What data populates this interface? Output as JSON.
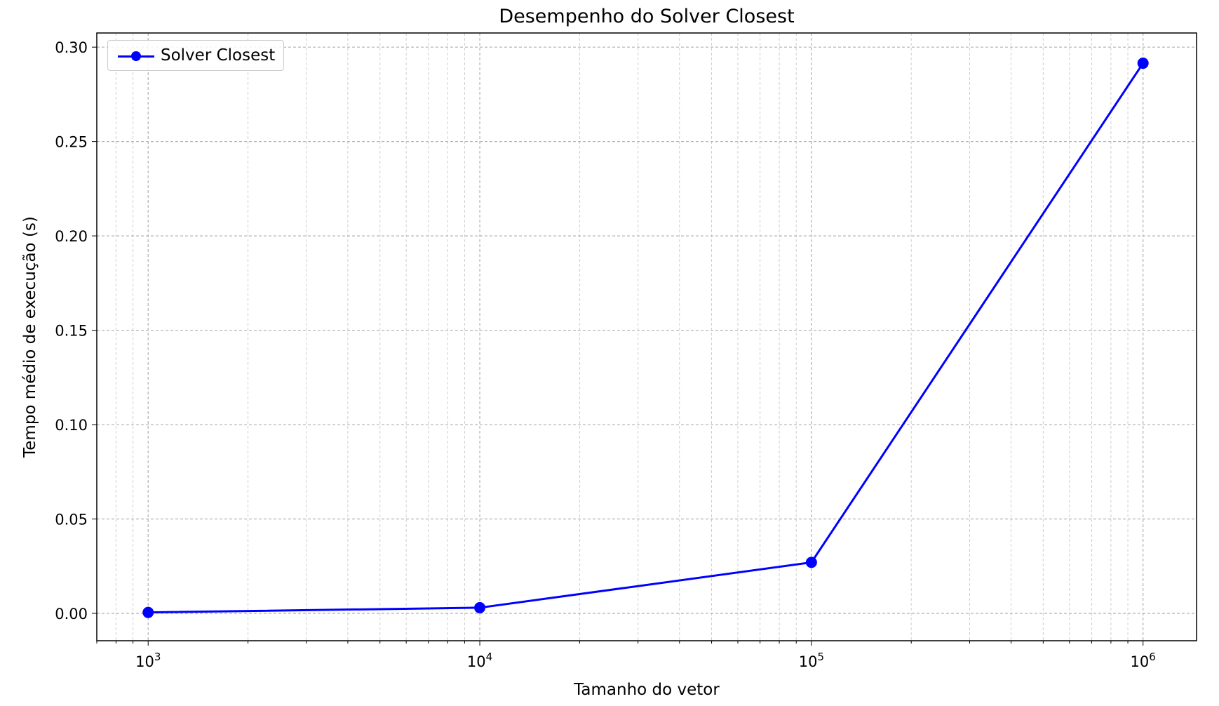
{
  "chart_data": {
    "type": "line",
    "title": "Desempenho do Solver Closest",
    "xlabel": "Tamanho do vetor",
    "ylabel": "Tempo médio de execução (s)",
    "x_scale": "log",
    "xlim": [
      700,
      1450000
    ],
    "ylim": [
      -0.0145,
      0.3075
    ],
    "x_ticks": [
      1000,
      10000,
      100000,
      1000000
    ],
    "x_tick_labels": [
      {
        "base": "10",
        "exp": "3"
      },
      {
        "base": "10",
        "exp": "4"
      },
      {
        "base": "10",
        "exp": "5"
      },
      {
        "base": "10",
        "exp": "6"
      }
    ],
    "y_ticks": [
      0.0,
      0.05,
      0.1,
      0.15,
      0.2,
      0.25,
      0.3
    ],
    "y_tick_labels": [
      "0.00",
      "0.05",
      "0.10",
      "0.15",
      "0.20",
      "0.25",
      "0.30"
    ],
    "grid": true,
    "legend_position": "top-left",
    "series": [
      {
        "name": "Solver Closest",
        "color": "#0000ff",
        "marker": "circle",
        "x": [
          1000,
          10000,
          100000,
          1000000
        ],
        "y": [
          0.0005,
          0.003,
          0.027,
          0.2915
        ]
      }
    ]
  }
}
